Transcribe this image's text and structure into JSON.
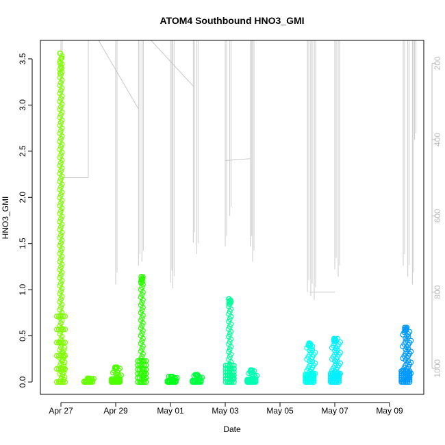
{
  "chart_data": {
    "type": "scatter",
    "title": "ATOM4 Southbound HNO3_GMI",
    "xlabel": "Date",
    "ylabel": "HNO3_GMI",
    "ylim": [
      0,
      3.7
    ],
    "xlim": [
      "2018-04-26T06:00",
      "2018-05-10T06:00"
    ],
    "yticks": [
      0.0,
      0.5,
      1.0,
      1.5,
      2.0,
      2.5,
      3.0,
      3.5
    ],
    "xticks": [
      {
        "date": "2018-04-27",
        "label": "Apr 27"
      },
      {
        "date": "2018-04-29",
        "label": "Apr 29"
      },
      {
        "date": "2018-05-01",
        "label": "May 01"
      },
      {
        "date": "2018-05-03",
        "label": "May 03"
      },
      {
        "date": "2018-05-05",
        "label": "May 05"
      },
      {
        "date": "2018-05-07",
        "label": "May 07"
      },
      {
        "date": "2018-05-09",
        "label": "May 09"
      }
    ],
    "right_axis": {
      "color": "#bdbdbd",
      "reversed": true,
      "range": [
        1068,
        140
      ],
      "ticks": [
        200,
        400,
        600,
        800,
        1000
      ]
    },
    "clusters": [
      {
        "t": "2018-04-27T00:00",
        "max": 3.56,
        "color": "#80ff00",
        "style": "tall"
      },
      {
        "t": "2018-04-28T00:00",
        "max": 0.04,
        "color": "#66ff00",
        "style": "short"
      },
      {
        "t": "2018-04-29T00:00",
        "max": 0.16,
        "color": "#4dff00",
        "style": "short"
      },
      {
        "t": "2018-04-29T23:00",
        "max": 1.14,
        "color": "#2bff00",
        "style": "tall"
      },
      {
        "t": "2018-05-01T01:00",
        "max": 0.06,
        "color": "#00ff1a",
        "style": "short"
      },
      {
        "t": "2018-05-01T23:00",
        "max": 0.08,
        "color": "#00ff40",
        "style": "short"
      },
      {
        "t": "2018-05-03T04:00",
        "max": 0.9,
        "color": "#00ff99",
        "style": "tall"
      },
      {
        "t": "2018-05-03T23:00",
        "max": 0.13,
        "color": "#00ffb3",
        "style": "short"
      },
      {
        "t": "2018-05-06T02:00",
        "max": 0.42,
        "color": "#00ffee",
        "style": "mid"
      },
      {
        "t": "2018-05-07T00:00",
        "max": 0.47,
        "color": "#00f0ff",
        "style": "mid"
      },
      {
        "t": "2018-05-09T14:00",
        "max": 0.59,
        "color": "#0099ff",
        "style": "mid"
      }
    ],
    "pressure_profiles": [
      {
        "t": "2018-04-27T00:00",
        "min": 140,
        "max": 1000
      },
      {
        "t": "2018-04-29T00:00",
        "min": 140,
        "max": 780
      },
      {
        "t": "2018-04-29T20:00",
        "min": 140,
        "max": 730
      },
      {
        "t": "2018-04-29T23:00",
        "min": 140,
        "max": 720
      },
      {
        "t": "2018-05-01T00:00",
        "min": 140,
        "max": 775
      },
      {
        "t": "2018-05-01T02:00",
        "min": 140,
        "max": 790
      },
      {
        "t": "2018-05-01T20:00",
        "min": 140,
        "max": 670
      },
      {
        "t": "2018-05-01T23:00",
        "min": 140,
        "max": 700
      },
      {
        "t": "2018-05-03T00:00",
        "min": 140,
        "max": 680
      },
      {
        "t": "2018-05-03T04:00",
        "min": 140,
        "max": 600
      },
      {
        "t": "2018-05-03T22:00",
        "min": 140,
        "max": 680
      },
      {
        "t": "2018-05-04T00:00",
        "min": 140,
        "max": 720
      },
      {
        "t": "2018-05-06T00:00",
        "min": 140,
        "max": 800
      },
      {
        "t": "2018-05-06T03:00",
        "min": 140,
        "max": 810
      },
      {
        "t": "2018-05-06T06:00",
        "min": 140,
        "max": 820
      },
      {
        "t": "2018-05-07T00:00",
        "min": 140,
        "max": 740
      },
      {
        "t": "2018-05-07T03:00",
        "min": 140,
        "max": 760
      },
      {
        "t": "2018-05-09T12:00",
        "min": 140,
        "max": 730
      },
      {
        "t": "2018-05-09T16:00",
        "min": 140,
        "max": 760
      },
      {
        "t": "2018-05-09T20:00",
        "min": 140,
        "max": 780
      },
      {
        "t": "2018-05-09T22:00",
        "min": 140,
        "max": 400
      }
    ],
    "pressure_connectors": [
      {
        "t": [
          "2018-04-27T01:00",
          "2018-04-28T00:00"
        ],
        "p": [
          500,
          500
        ]
      },
      {
        "t": [
          "2018-04-28T00:00",
          "2018-04-28T00:00"
        ],
        "p": [
          500,
          140
        ]
      },
      {
        "t": [
          "2018-04-28T09:00",
          "2018-04-29T20:00"
        ],
        "p": [
          140,
          320
        ]
      },
      {
        "t": [
          "2018-04-30T07:00",
          "2018-05-01T20:00"
        ],
        "p": [
          140,
          260
        ]
      },
      {
        "t": [
          "2018-05-03T00:00",
          "2018-05-03T22:00"
        ],
        "p": [
          455,
          450
        ]
      },
      {
        "t": [
          "2018-05-06T02:00",
          "2018-05-07T00:00"
        ],
        "p": [
          800,
          800
        ]
      }
    ]
  }
}
